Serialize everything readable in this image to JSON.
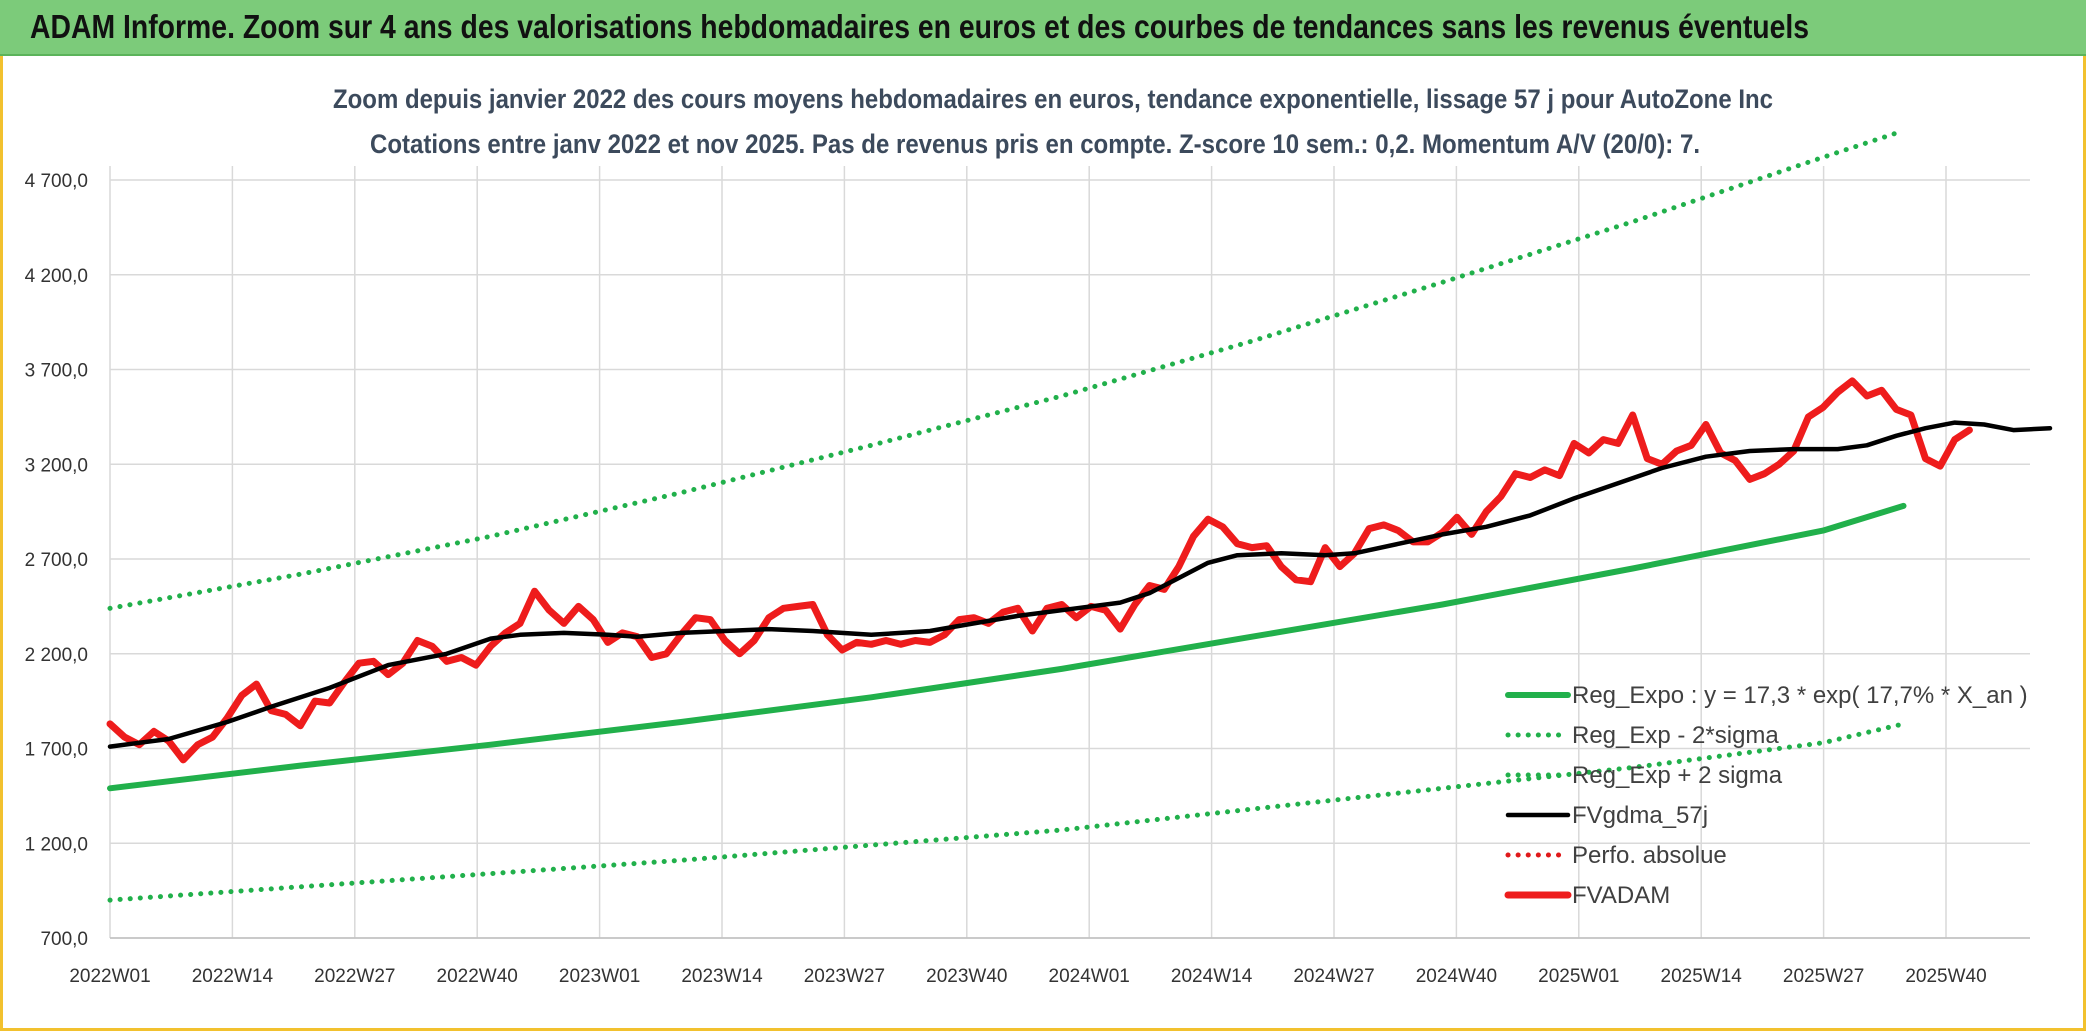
{
  "header": {
    "title": "ADAM Informe. Zoom sur 4 ans des valorisations hebdomadaires en euros et des courbes de tendances sans les revenus éventuels"
  },
  "chart_data": {
    "type": "line",
    "title": "Zoom depuis janvier 2022 des cours moyens hebdomadaires en euros, tendance exponentielle, lissage 57 j pour AutoZone Inc",
    "subtitle": "Cotations entre janv 2022 et nov 2025. Pas de revenus pris en compte. Z-score 10 sem.: 0,2. Momentum A/V (20/0): 7.",
    "xlabel": "",
    "ylabel": "",
    "ylim": [
      700,
      5000
    ],
    "y_ticks": [
      700,
      1200,
      1700,
      2200,
      2700,
      3200,
      3700,
      4200,
      4700
    ],
    "y_tick_labels": [
      "700,0",
      "1 200,0",
      "1 700,0",
      "2 200,0",
      "2 700,0",
      "3 200,0",
      "3 700,0",
      "4 200,0",
      "4 700,0"
    ],
    "x_tick_labels": [
      "2022W01",
      "2022W14",
      "2022W27",
      "2022W40",
      "2023W01",
      "2023W14",
      "2023W27",
      "2023W40",
      "2024W01",
      "2024W14",
      "2024W27",
      "2024W40",
      "2025W01",
      "2025W14",
      "2025W27",
      "2025W40"
    ],
    "grid": true,
    "legend_position": "bottom-right",
    "series": [
      {
        "name": "Reg_Expo : y = 17,3 * exp( 17,7% *  X_an )",
        "color": "#21b04b",
        "style": "solid-thick",
        "points": [
          [
            0,
            1490
          ],
          [
            26,
            1610
          ],
          [
            52,
            1720
          ],
          [
            78,
            1840
          ],
          [
            104,
            1970
          ],
          [
            130,
            2120
          ],
          [
            156,
            2290
          ],
          [
            182,
            2460
          ],
          [
            208,
            2650
          ],
          [
            234,
            2850
          ],
          [
            245,
            2980
          ]
        ]
      },
      {
        "name": "Reg_Exp - 2*sigma",
        "color": "#21b04b",
        "style": "dotted",
        "points": [
          [
            0,
            900
          ],
          [
            26,
            970
          ],
          [
            52,
            1040
          ],
          [
            78,
            1110
          ],
          [
            104,
            1190
          ],
          [
            130,
            1270
          ],
          [
            156,
            1380
          ],
          [
            182,
            1490
          ],
          [
            208,
            1600
          ],
          [
            234,
            1730
          ],
          [
            245,
            1830
          ]
        ]
      },
      {
        "name": "Reg_Exp + 2 sigma",
        "color": "#21b04b",
        "style": "dotted",
        "points": [
          [
            0,
            2440
          ],
          [
            26,
            2620
          ],
          [
            52,
            2820
          ],
          [
            78,
            3050
          ],
          [
            104,
            3300
          ],
          [
            130,
            3560
          ],
          [
            156,
            3850
          ],
          [
            182,
            4160
          ],
          [
            208,
            4480
          ],
          [
            234,
            4820
          ],
          [
            245,
            4960
          ]
        ]
      },
      {
        "name": "FVgdma_57j",
        "color": "#000000",
        "style": "solid",
        "points": [
          [
            0,
            1710
          ],
          [
            8,
            1750
          ],
          [
            16,
            1840
          ],
          [
            22,
            1920
          ],
          [
            30,
            2020
          ],
          [
            38,
            2140
          ],
          [
            46,
            2200
          ],
          [
            52,
            2280
          ],
          [
            56,
            2300
          ],
          [
            62,
            2310
          ],
          [
            68,
            2300
          ],
          [
            72,
            2290
          ],
          [
            78,
            2310
          ],
          [
            84,
            2320
          ],
          [
            90,
            2330
          ],
          [
            96,
            2320
          ],
          [
            104,
            2300
          ],
          [
            112,
            2320
          ],
          [
            118,
            2360
          ],
          [
            124,
            2400
          ],
          [
            132,
            2440
          ],
          [
            138,
            2470
          ],
          [
            142,
            2520
          ],
          [
            146,
            2600
          ],
          [
            150,
            2680
          ],
          [
            154,
            2720
          ],
          [
            160,
            2730
          ],
          [
            166,
            2720
          ],
          [
            170,
            2730
          ],
          [
            176,
            2780
          ],
          [
            182,
            2830
          ],
          [
            188,
            2870
          ],
          [
            194,
            2930
          ],
          [
            200,
            3020
          ],
          [
            206,
            3100
          ],
          [
            212,
            3180
          ],
          [
            218,
            3240
          ],
          [
            224,
            3270
          ],
          [
            230,
            3280
          ],
          [
            236,
            3280
          ],
          [
            240,
            3300
          ],
          [
            244,
            3350
          ],
          [
            248,
            3390
          ],
          [
            252,
            3420
          ],
          [
            256,
            3410
          ],
          [
            260,
            3380
          ],
          [
            265,
            3390
          ]
        ]
      },
      {
        "name": "Perfo. absolue",
        "color": "#e0191b",
        "style": "dotted",
        "points": []
      },
      {
        "name": "FVADAM",
        "color": "#ee1c1c",
        "style": "solid-thick",
        "points": [
          [
            0,
            1830
          ],
          [
            2,
            1760
          ],
          [
            4,
            1720
          ],
          [
            6,
            1790
          ],
          [
            8,
            1740
          ],
          [
            10,
            1640
          ],
          [
            12,
            1720
          ],
          [
            14,
            1760
          ],
          [
            16,
            1860
          ],
          [
            18,
            1980
          ],
          [
            20,
            2040
          ],
          [
            22,
            1900
          ],
          [
            24,
            1880
          ],
          [
            26,
            1820
          ],
          [
            28,
            1950
          ],
          [
            30,
            1940
          ],
          [
            32,
            2050
          ],
          [
            34,
            2150
          ],
          [
            36,
            2160
          ],
          [
            38,
            2090
          ],
          [
            40,
            2150
          ],
          [
            42,
            2270
          ],
          [
            44,
            2240
          ],
          [
            46,
            2160
          ],
          [
            48,
            2180
          ],
          [
            50,
            2140
          ],
          [
            52,
            2240
          ],
          [
            54,
            2310
          ],
          [
            56,
            2360
          ],
          [
            58,
            2530
          ],
          [
            60,
            2430
          ],
          [
            62,
            2360
          ],
          [
            64,
            2450
          ],
          [
            66,
            2380
          ],
          [
            68,
            2260
          ],
          [
            70,
            2310
          ],
          [
            72,
            2290
          ],
          [
            74,
            2180
          ],
          [
            76,
            2200
          ],
          [
            78,
            2300
          ],
          [
            80,
            2390
          ],
          [
            82,
            2380
          ],
          [
            84,
            2270
          ],
          [
            86,
            2200
          ],
          [
            88,
            2270
          ],
          [
            90,
            2390
          ],
          [
            92,
            2440
          ],
          [
            94,
            2450
          ],
          [
            96,
            2460
          ],
          [
            98,
            2300
          ],
          [
            100,
            2220
          ],
          [
            102,
            2260
          ],
          [
            104,
            2250
          ],
          [
            106,
            2270
          ],
          [
            108,
            2250
          ],
          [
            110,
            2270
          ],
          [
            112,
            2260
          ],
          [
            114,
            2300
          ],
          [
            116,
            2380
          ],
          [
            118,
            2390
          ],
          [
            120,
            2360
          ],
          [
            122,
            2420
          ],
          [
            124,
            2440
          ],
          [
            126,
            2320
          ],
          [
            128,
            2440
          ],
          [
            130,
            2460
          ],
          [
            132,
            2390
          ],
          [
            134,
            2450
          ],
          [
            136,
            2430
          ],
          [
            138,
            2330
          ],
          [
            140,
            2460
          ],
          [
            142,
            2560
          ],
          [
            144,
            2540
          ],
          [
            146,
            2660
          ],
          [
            148,
            2820
          ],
          [
            150,
            2910
          ],
          [
            152,
            2870
          ],
          [
            154,
            2780
          ],
          [
            156,
            2760
          ],
          [
            158,
            2770
          ],
          [
            160,
            2660
          ],
          [
            162,
            2590
          ],
          [
            164,
            2580
          ],
          [
            166,
            2760
          ],
          [
            168,
            2660
          ],
          [
            170,
            2730
          ],
          [
            172,
            2860
          ],
          [
            174,
            2880
          ],
          [
            176,
            2850
          ],
          [
            178,
            2790
          ],
          [
            180,
            2790
          ],
          [
            182,
            2840
          ],
          [
            184,
            2920
          ],
          [
            186,
            2830
          ],
          [
            188,
            2950
          ],
          [
            190,
            3030
          ],
          [
            192,
            3150
          ],
          [
            194,
            3130
          ],
          [
            196,
            3170
          ],
          [
            198,
            3140
          ],
          [
            200,
            3310
          ],
          [
            202,
            3260
          ],
          [
            204,
            3330
          ],
          [
            206,
            3310
          ],
          [
            208,
            3460
          ],
          [
            210,
            3230
          ],
          [
            212,
            3200
          ],
          [
            214,
            3270
          ],
          [
            216,
            3300
          ],
          [
            218,
            3410
          ],
          [
            220,
            3260
          ],
          [
            222,
            3220
          ],
          [
            224,
            3120
          ],
          [
            226,
            3150
          ],
          [
            228,
            3200
          ],
          [
            230,
            3270
          ],
          [
            232,
            3450
          ],
          [
            234,
            3500
          ],
          [
            236,
            3580
          ],
          [
            238,
            3640
          ],
          [
            240,
            3560
          ],
          [
            242,
            3590
          ],
          [
            244,
            3490
          ],
          [
            246,
            3460
          ],
          [
            248,
            3230
          ],
          [
            250,
            3190
          ],
          [
            252,
            3330
          ],
          [
            254,
            3380
          ]
        ]
      }
    ]
  }
}
